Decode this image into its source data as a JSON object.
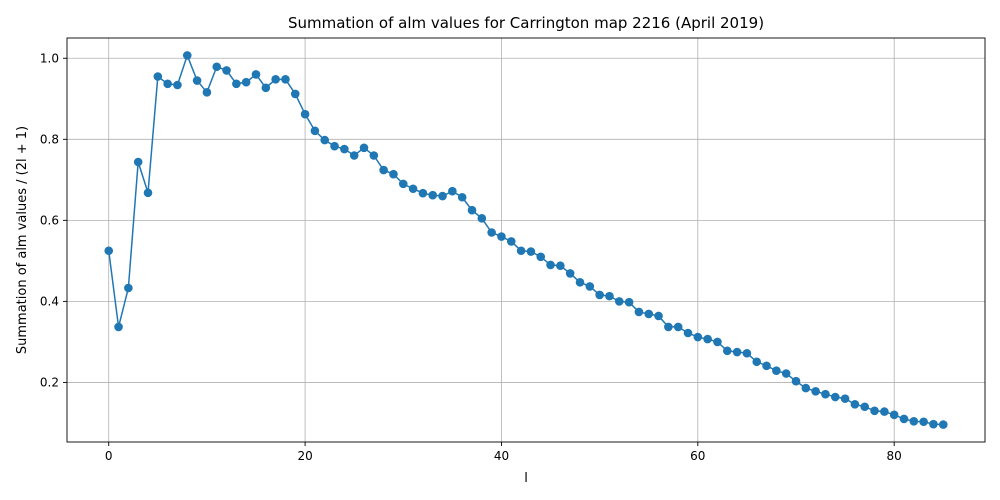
{
  "chart_data": {
    "type": "line",
    "title": "Summation of alm values for Carrington map 2216 (April 2019)",
    "xlabel": "l",
    "ylabel": "Summation of alm values / (2l + 1)",
    "xlim": [
      -4.25,
      89.25
    ],
    "ylim": [
      0.053,
      1.05
    ],
    "xticks": [
      0,
      20,
      40,
      60,
      80
    ],
    "yticks": [
      0.2,
      0.4,
      0.6,
      0.8,
      1.0
    ],
    "xtick_labels": [
      "0",
      "20",
      "40",
      "60",
      "80"
    ],
    "ytick_labels": [
      "0.2",
      "0.4",
      "0.6",
      "0.8",
      "1.0"
    ],
    "grid": true,
    "color": "#1f77b4",
    "series": [
      {
        "x": [
          0,
          1,
          2,
          3,
          4,
          5,
          6,
          7,
          8,
          9,
          10,
          11,
          12,
          13,
          14,
          15,
          16,
          17,
          18,
          19,
          20,
          21,
          22,
          23,
          24,
          25,
          26,
          27,
          28,
          29,
          30,
          31,
          32,
          33,
          34,
          35,
          36,
          37,
          38,
          39,
          40,
          41,
          42,
          43,
          44,
          45,
          46,
          47,
          48,
          49,
          50,
          51,
          52,
          53,
          54,
          55,
          56,
          57,
          58,
          59,
          60,
          61,
          62,
          63,
          64,
          65,
          66,
          67,
          68,
          69,
          70,
          71,
          72,
          73,
          74,
          75,
          76,
          77,
          78,
          79,
          80,
          81,
          82,
          83,
          84,
          85
        ],
        "values": [
          0.525,
          0.337,
          0.433,
          0.744,
          0.668,
          0.955,
          0.937,
          0.934,
          1.007,
          0.945,
          0.916,
          0.979,
          0.97,
          0.937,
          0.941,
          0.96,
          0.927,
          0.948,
          0.948,
          0.912,
          0.862,
          0.821,
          0.798,
          0.783,
          0.776,
          0.76,
          0.779,
          0.76,
          0.724,
          0.714,
          0.69,
          0.678,
          0.667,
          0.662,
          0.66,
          0.672,
          0.657,
          0.625,
          0.605,
          0.57,
          0.56,
          0.548,
          0.525,
          0.523,
          0.51,
          0.49,
          0.488,
          0.469,
          0.447,
          0.437,
          0.416,
          0.413,
          0.4,
          0.398,
          0.374,
          0.369,
          0.364,
          0.337,
          0.337,
          0.322,
          0.312,
          0.307,
          0.3,
          0.278,
          0.275,
          0.272,
          0.251,
          0.241,
          0.229,
          0.222,
          0.203,
          0.186,
          0.178,
          0.171,
          0.164,
          0.16,
          0.146,
          0.14,
          0.13,
          0.128,
          0.12,
          0.11,
          0.104,
          0.103,
          0.097,
          0.096
        ]
      }
    ]
  }
}
